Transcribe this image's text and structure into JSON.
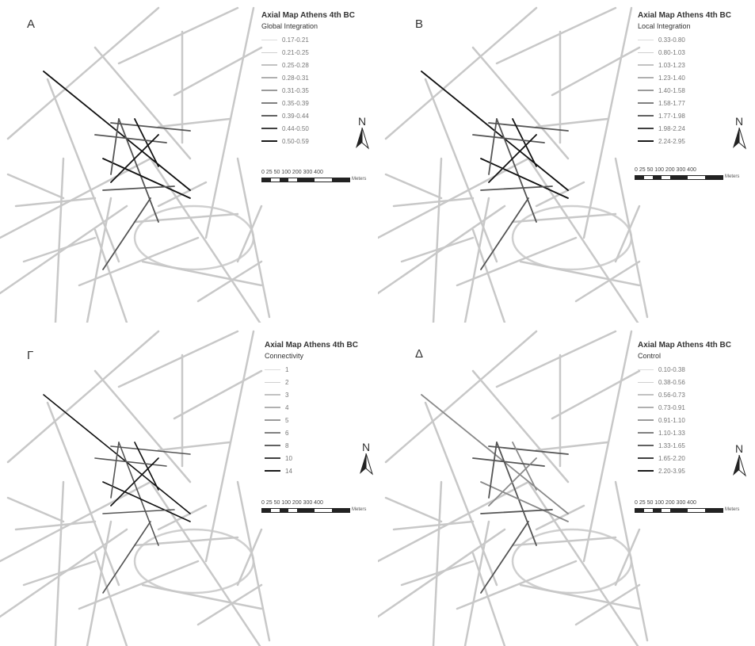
{
  "panels": [
    {
      "label": "A",
      "legend_title": "Axial Map Athens 4th BC",
      "legend_subtitle": "Global Integration",
      "legend_items": [
        "0.17-0.21",
        "0.21-0.25",
        "0.25-0.28",
        "0.28-0.31",
        "0.31-0.35",
        "0.35-0.39",
        "0.39-0.44",
        "0.44-0.50",
        "0.50-0.59"
      ],
      "scale": {
        "ticks": "0 25 50 100   200   300    400",
        "unit": "Meters"
      }
    },
    {
      "label": "B",
      "legend_title": "Axial Map Athens 4th BC",
      "legend_subtitle": "Local Integration",
      "legend_items": [
        "0.33-0.80",
        "0.80-1.03",
        "1.03-1.23",
        "1.23-1.40",
        "1.40-1.58",
        "1.58-1.77",
        "1.77-1.98",
        "1.98-2.24",
        "2.24-2.95"
      ],
      "scale": {
        "ticks": "0 25 50 100   200   300    400",
        "unit": "Meters"
      }
    },
    {
      "label": "Γ",
      "legend_title": "Axial Map Athens 4th BC",
      "legend_subtitle": "Connectivity",
      "legend_items": [
        "1",
        "2",
        "3",
        "4",
        "5",
        "6",
        "8",
        "10",
        "14"
      ],
      "scale": {
        "ticks": "0 25 50 100   200   300    400",
        "unit": "Meters"
      }
    },
    {
      "label": "Δ",
      "legend_title": "Axial Map Athens 4th BC",
      "legend_subtitle": "Control",
      "legend_items": [
        "0.10-0.38",
        "0.38-0.56",
        "0.56-0.73",
        "0.73-0.91",
        "0.91-1.10",
        "1.10-1.33",
        "1.33-1.65",
        "1.65-2.20",
        "2.20-3.95"
      ],
      "scale": {
        "ticks": "0 25 50 100   200   300    400",
        "unit": "Meters"
      }
    }
  ],
  "north_label": "N",
  "colors": {
    "background": "#ffffff",
    "low_value_line": "#c8c8c8",
    "high_value_line": "#111111",
    "text": "#333333"
  },
  "legend_line_shades": [
    "#dcdcdc",
    "#cfcfcf",
    "#c2c2c2",
    "#b0b0b0",
    "#9a9a9a",
    "#808080",
    "#616161",
    "#404040",
    "#1a1a1a"
  ],
  "legend_line_widths": [
    1,
    1,
    1.2,
    1.2,
    1.5,
    1.6,
    1.8,
    2,
    2.4
  ]
}
